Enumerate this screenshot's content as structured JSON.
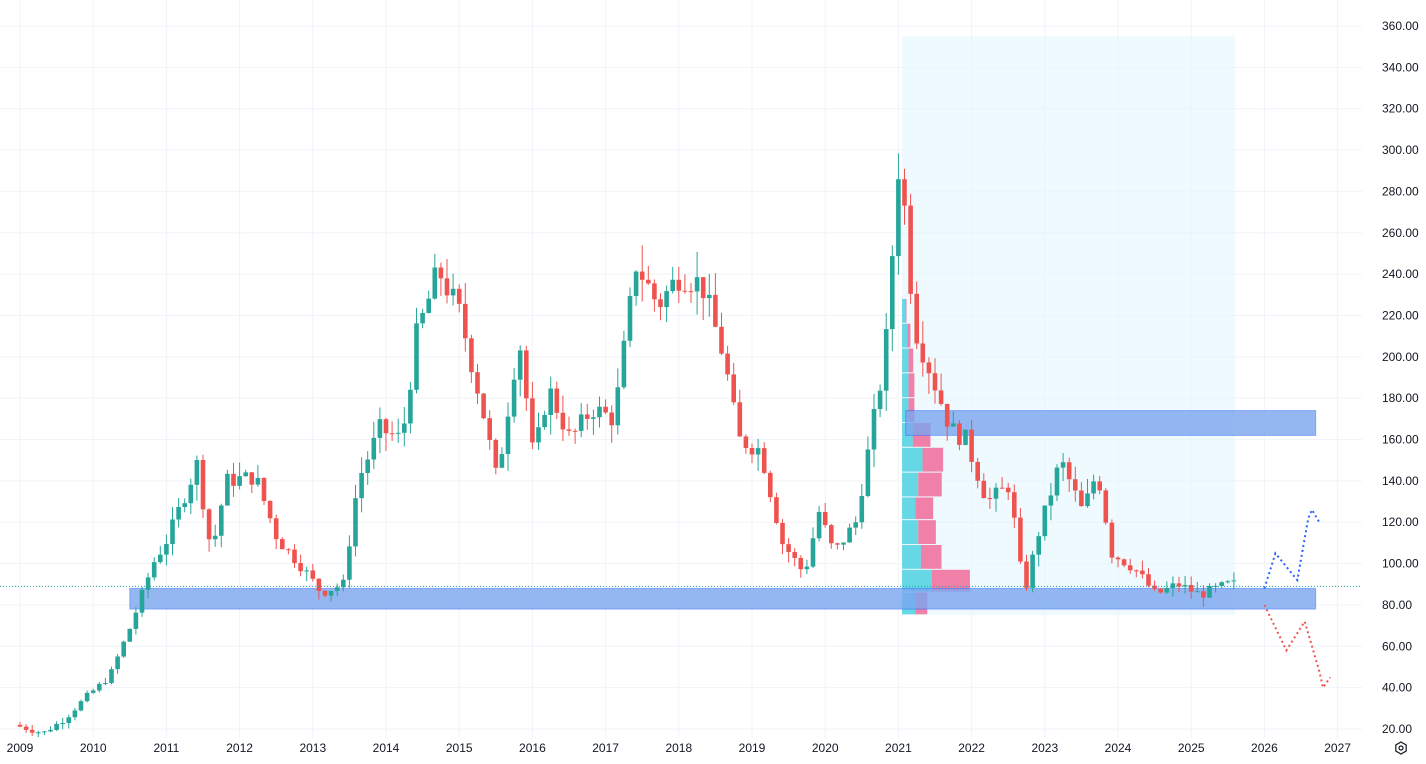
{
  "chart_data": {
    "type": "candlestick",
    "title": "",
    "xlabel": "",
    "ylabel": "",
    "xlim": [
      2009.0,
      2027.3
    ],
    "ylim": [
      20,
      360
    ],
    "x_ticks": [
      "2009",
      "2010",
      "2011",
      "2012",
      "2013",
      "2014",
      "2015",
      "2016",
      "2017",
      "2018",
      "2019",
      "2020",
      "2021",
      "2022",
      "2023",
      "2024",
      "2025",
      "2026",
      "2027"
    ],
    "y_ticks": [
      "20.00",
      "40.00",
      "60.00",
      "80.00",
      "100.00",
      "120.00",
      "140.00",
      "160.00",
      "180.00",
      "200.00",
      "220.00",
      "240.00",
      "260.00",
      "280.00",
      "300.00",
      "320.00",
      "340.00",
      "360.00"
    ],
    "grid": true,
    "current_price": 89,
    "colors": {
      "up": "#26a69a",
      "down": "#ef5350",
      "zone": "#7aa6f0",
      "profile_up": "#4dd0e1",
      "profile_down": "#f06292",
      "highlight": "#e1f5fe"
    },
    "anchors": [
      [
        2009.0,
        22
      ],
      [
        2009.4,
        18
      ],
      [
        2009.7,
        25
      ],
      [
        2010.0,
        36
      ],
      [
        2010.3,
        45
      ],
      [
        2010.6,
        70
      ],
      [
        2010.9,
        100
      ],
      [
        2011.1,
        112
      ],
      [
        2011.5,
        148
      ],
      [
        2011.7,
        105
      ],
      [
        2011.9,
        140
      ],
      [
        2012.3,
        142
      ],
      [
        2012.6,
        112
      ],
      [
        2012.9,
        100
      ],
      [
        2013.2,
        86
      ],
      [
        2013.5,
        90
      ],
      [
        2013.7,
        140
      ],
      [
        2014.0,
        165
      ],
      [
        2014.3,
        160
      ],
      [
        2014.5,
        210
      ],
      [
        2014.8,
        242
      ],
      [
        2015.1,
        220
      ],
      [
        2015.4,
        175
      ],
      [
        2015.6,
        140
      ],
      [
        2015.9,
        210
      ],
      [
        2016.1,
        150
      ],
      [
        2016.3,
        185
      ],
      [
        2016.6,
        160
      ],
      [
        2016.9,
        175
      ],
      [
        2017.2,
        170
      ],
      [
        2017.5,
        245
      ],
      [
        2017.8,
        225
      ],
      [
        2018.1,
        240
      ],
      [
        2018.4,
        235
      ],
      [
        2018.7,
        200
      ],
      [
        2018.9,
        160
      ],
      [
        2019.2,
        155
      ],
      [
        2019.5,
        110
      ],
      [
        2019.8,
        95
      ],
      [
        2020.0,
        125
      ],
      [
        2020.2,
        105
      ],
      [
        2020.5,
        120
      ],
      [
        2020.9,
        200
      ],
      [
        2021.1,
        300
      ],
      [
        2021.3,
        215
      ],
      [
        2021.5,
        195
      ],
      [
        2021.8,
        165
      ],
      [
        2022.0,
        160
      ],
      [
        2022.3,
        130
      ],
      [
        2022.6,
        138
      ],
      [
        2022.8,
        85
      ],
      [
        2023.0,
        115
      ],
      [
        2023.3,
        150
      ],
      [
        2023.6,
        125
      ],
      [
        2023.8,
        145
      ],
      [
        2024.0,
        105
      ],
      [
        2024.3,
        98
      ],
      [
        2024.6,
        85
      ],
      [
        2024.9,
        90
      ],
      [
        2025.2,
        85
      ],
      [
        2025.6,
        90
      ]
    ],
    "zones": [
      {
        "x0": 2010.5,
        "x1": 2026.7,
        "y0": 78,
        "y1": 88
      },
      {
        "x0": 2021.1,
        "x1": 2026.7,
        "y0": 162,
        "y1": 174
      }
    ],
    "highlight_range": {
      "x0": 2021.05,
      "x1": 2025.6,
      "y0": 75,
      "y1": 355
    },
    "volume_profile": [
      {
        "y0": 75,
        "y1": 86,
        "up": 0.25,
        "down": 0.2
      },
      {
        "y0": 86,
        "y1": 97,
        "up": 0.55,
        "down": 0.65
      },
      {
        "y0": 97,
        "y1": 109,
        "up": 0.35,
        "down": 0.35
      },
      {
        "y0": 109,
        "y1": 121,
        "up": 0.3,
        "down": 0.3
      },
      {
        "y0": 121,
        "y1": 132,
        "up": 0.25,
        "down": 0.3
      },
      {
        "y0": 132,
        "y1": 144,
        "up": 0.3,
        "down": 0.4
      },
      {
        "y0": 144,
        "y1": 156,
        "up": 0.38,
        "down": 0.35
      },
      {
        "y0": 156,
        "y1": 168,
        "up": 0.2,
        "down": 0.3
      },
      {
        "y0": 168,
        "y1": 180,
        "up": 0.12,
        "down": 0.1
      },
      {
        "y0": 180,
        "y1": 192,
        "up": 0.12,
        "down": 0.1
      },
      {
        "y0": 192,
        "y1": 204,
        "up": 0.12,
        "down": 0.08
      },
      {
        "y0": 204,
        "y1": 216,
        "up": 0.1,
        "down": 0.05
      },
      {
        "y0": 216,
        "y1": 228,
        "up": 0.06,
        "down": 0.02
      }
    ],
    "bull_projection": [
      [
        2026.0,
        88
      ],
      [
        2026.15,
        105
      ],
      [
        2026.45,
        92
      ],
      [
        2026.6,
        122
      ],
      [
        2026.65,
        126
      ],
      [
        2026.75,
        120
      ]
    ],
    "bear_projection": [
      [
        2026.0,
        80
      ],
      [
        2026.3,
        58
      ],
      [
        2026.55,
        72
      ],
      [
        2026.75,
        48
      ],
      [
        2026.8,
        40
      ],
      [
        2026.9,
        45
      ]
    ]
  },
  "controls": {
    "settings_icon": "gear-hexagon-icon"
  }
}
